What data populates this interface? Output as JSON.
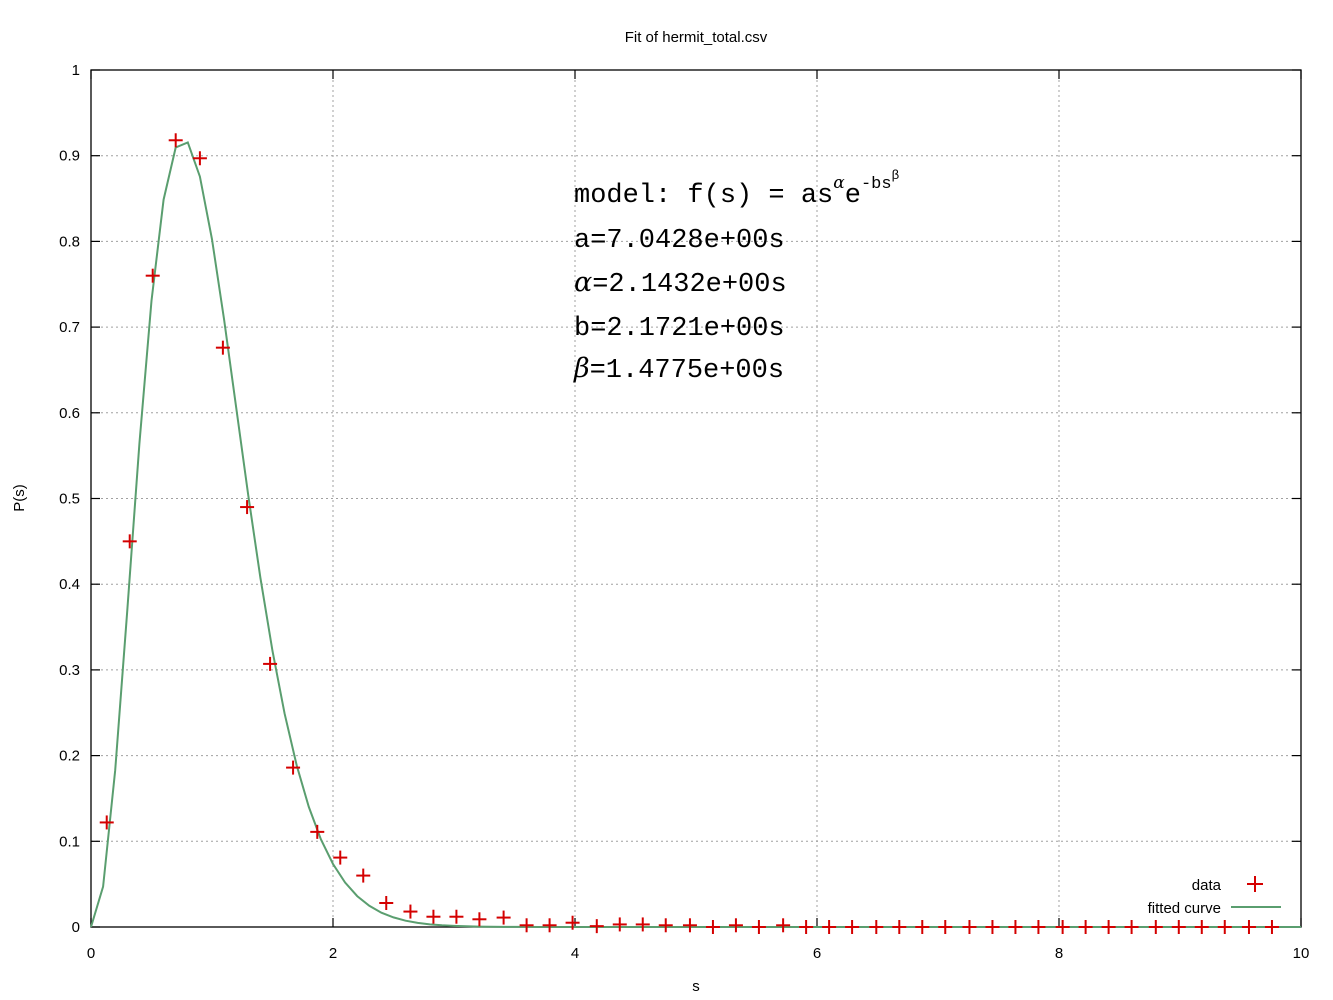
{
  "chart_data": {
    "type": "scatter",
    "title": "Fit of hermit_total.csv",
    "xlabel": "s",
    "ylabel": "P(s)",
    "xlim": [
      0,
      10
    ],
    "ylim": [
      0,
      1
    ],
    "x_ticks": [
      "0",
      "2",
      "4",
      "6",
      "8",
      "10"
    ],
    "y_ticks": [
      "0",
      "0.1",
      "0.2",
      "0.3",
      "0.4",
      "0.5",
      "0.6",
      "0.7",
      "0.8",
      "0.9",
      "1"
    ],
    "grid": true,
    "legend_position": "bottom-right",
    "legend": {
      "data": "data",
      "fit": "fitted curve"
    },
    "annotation": {
      "model_prefix": "model: f(s) = as",
      "model_alpha": "α",
      "model_e": "e",
      "model_exp": "-bs",
      "model_beta": "β",
      "line_a": "a=7.0428e+00s",
      "alpha_sym": "α",
      "alpha_rest": "=2.1432e+00s",
      "line_b": "b=2.1721e+00s",
      "beta_sym": "β",
      "beta_rest": "=1.4775e+00s"
    },
    "fit_params": {
      "a": 7.0428,
      "alpha": 2.1432,
      "b": 2.1721,
      "beta": 1.4775
    },
    "series": [
      {
        "name": "data",
        "color": "#d40000",
        "x": [
          0.13,
          0.32,
          0.51,
          0.7,
          0.9,
          1.09,
          1.29,
          1.48,
          1.67,
          1.87,
          2.06,
          2.25,
          2.44,
          2.64,
          2.83,
          3.02,
          3.21,
          3.41,
          3.6,
          3.79,
          3.98,
          4.18,
          4.37,
          4.56,
          4.75,
          4.95,
          5.14,
          5.33,
          5.52,
          5.72,
          5.91,
          6.1,
          6.29,
          6.49,
          6.68,
          6.87,
          7.06,
          7.26,
          7.45,
          7.64,
          7.83,
          8.03,
          8.22,
          8.41,
          8.6,
          8.8,
          8.99,
          9.18,
          9.37,
          9.57,
          9.76
        ],
        "y": [
          0.122,
          0.45,
          0.76,
          0.918,
          0.897,
          0.676,
          0.49,
          0.307,
          0.186,
          0.111,
          0.081,
          0.06,
          0.028,
          0.018,
          0.012,
          0.012,
          0.009,
          0.011,
          0.002,
          0.002,
          0.005,
          0.001,
          0.003,
          0.003,
          0.002,
          0.002,
          0.0,
          0.002,
          0.0,
          0.002,
          0.0,
          0.0,
          0.0,
          0.0,
          0.0,
          0.0,
          0.0,
          0.0,
          0.0,
          0.0,
          0.0,
          0.0,
          0.0,
          0.0,
          0.0,
          0.0,
          0.0,
          0.0,
          0.0,
          0.0,
          0.0
        ]
      },
      {
        "name": "fitted curve",
        "color": "#5a9e6f"
      }
    ]
  }
}
